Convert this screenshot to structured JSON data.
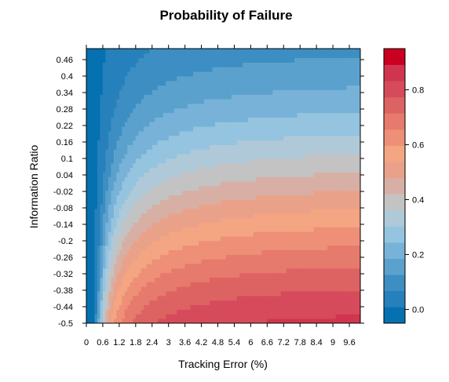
{
  "chart_data": {
    "type": "heatmap",
    "title": "Probability of Failure",
    "xlabel": "Tracking Error (%)",
    "ylabel": "Information Ratio",
    "x_ticks": [
      "0",
      "0.6",
      "1.2",
      "1.8",
      "2.4",
      "3",
      "3.6",
      "4.2",
      "4.8",
      "5.4",
      "6",
      "6.6",
      "7.2",
      "7.8",
      "8.4",
      "9",
      "9.6"
    ],
    "y_ticks": [
      "0.46",
      "0.4",
      "0.34",
      "0.28",
      "0.22",
      "0.16",
      "0.1",
      "0.04",
      "-0.02",
      "-0.08",
      "-0.14",
      "-0.2",
      "-0.26",
      "-0.32",
      "-0.38",
      "-0.44",
      "-0.5"
    ],
    "xlim": [
      0,
      10
    ],
    "ylim": [
      -0.5,
      0.5
    ],
    "colorbar": {
      "ticks": [
        "0.0",
        "0.2",
        "0.4",
        "0.6",
        "0.8"
      ],
      "range": [
        -0.05,
        0.95
      ],
      "colors": [
        "#0571B0",
        "#2680BB",
        "#3C8EC3",
        "#5BA1CD",
        "#78B2D8",
        "#94C4DF",
        "#AFC9D8",
        "#C3C3C3",
        "#D8AFA4",
        "#E9A289",
        "#F4A582",
        "#EE8F77",
        "#E67A6C",
        "#DD6362",
        "#D64B5B",
        "#D03550",
        "#CA0020"
      ]
    }
  }
}
